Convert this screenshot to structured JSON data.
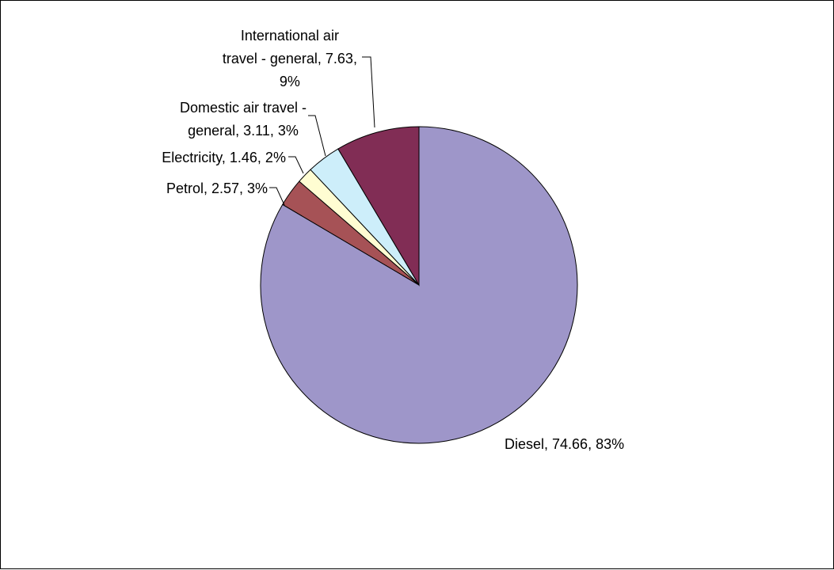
{
  "chart_data": {
    "type": "pie",
    "title": "",
    "start": "top",
    "direction": "clockwise",
    "legend": "none",
    "slices": [
      {
        "name": "Diesel",
        "value": 74.66,
        "percent": "83%",
        "color": "#9e96c9",
        "label_lines": [
          "Diesel, 74.66, 83%"
        ]
      },
      {
        "name": "Petrol",
        "value": 2.57,
        "percent": "3%",
        "color": "#a65256",
        "label_lines": [
          "Petrol, 2.57, 3%"
        ]
      },
      {
        "name": "Electricity",
        "value": 1.46,
        "percent": "2%",
        "color": "#fffdd2",
        "label_lines": [
          "Electricity, 1.46, 2%"
        ]
      },
      {
        "name": "Domestic air travel - general",
        "value": 3.11,
        "percent": "3%",
        "color": "#cdeefa",
        "label_lines": [
          "Domestic air travel -",
          "general, 3.11, 3%"
        ]
      },
      {
        "name": "International air travel - general",
        "value": 7.63,
        "percent": "9%",
        "color": "#812d55",
        "label_lines": [
          "International air",
          "travel - general, 7.63,",
          "9%"
        ]
      }
    ]
  }
}
